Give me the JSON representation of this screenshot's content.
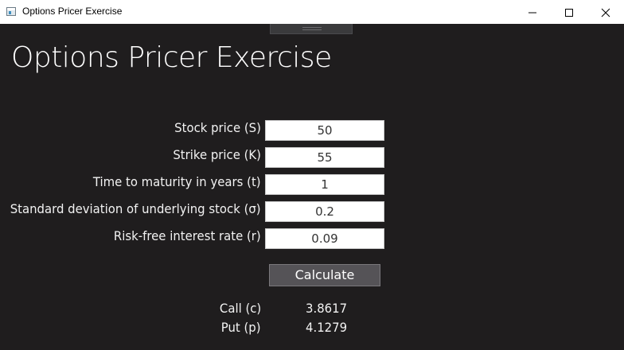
{
  "window": {
    "title": "Options Pricer Exercise",
    "icon": "app-window-icon",
    "controls": {
      "minimize_icon": "minimize-icon",
      "maximize_icon": "maximize-icon",
      "close_icon": "close-icon"
    }
  },
  "page": {
    "title": "Options Pricer Exercise"
  },
  "form": {
    "fields": [
      {
        "label": "Stock price (S)",
        "value": "50"
      },
      {
        "label": "Strike price (K)",
        "value": "55"
      },
      {
        "label": "Time to maturity in years (t)",
        "value": "1"
      },
      {
        "label": "Standard deviation of underlying stock (σ)",
        "value": "0.2"
      },
      {
        "label": "Risk-free interest rate (r)",
        "value": "0.09"
      }
    ],
    "calculate_label": "Calculate"
  },
  "results": {
    "call": {
      "label": "Call (c)",
      "value": "3.8617"
    },
    "put": {
      "label": "Put (p)",
      "value": "4.1279"
    }
  },
  "colors": {
    "background": "#1f1d1e",
    "titlebar": "#ffffff",
    "button": "#555357",
    "text": "#f2f2f2"
  }
}
